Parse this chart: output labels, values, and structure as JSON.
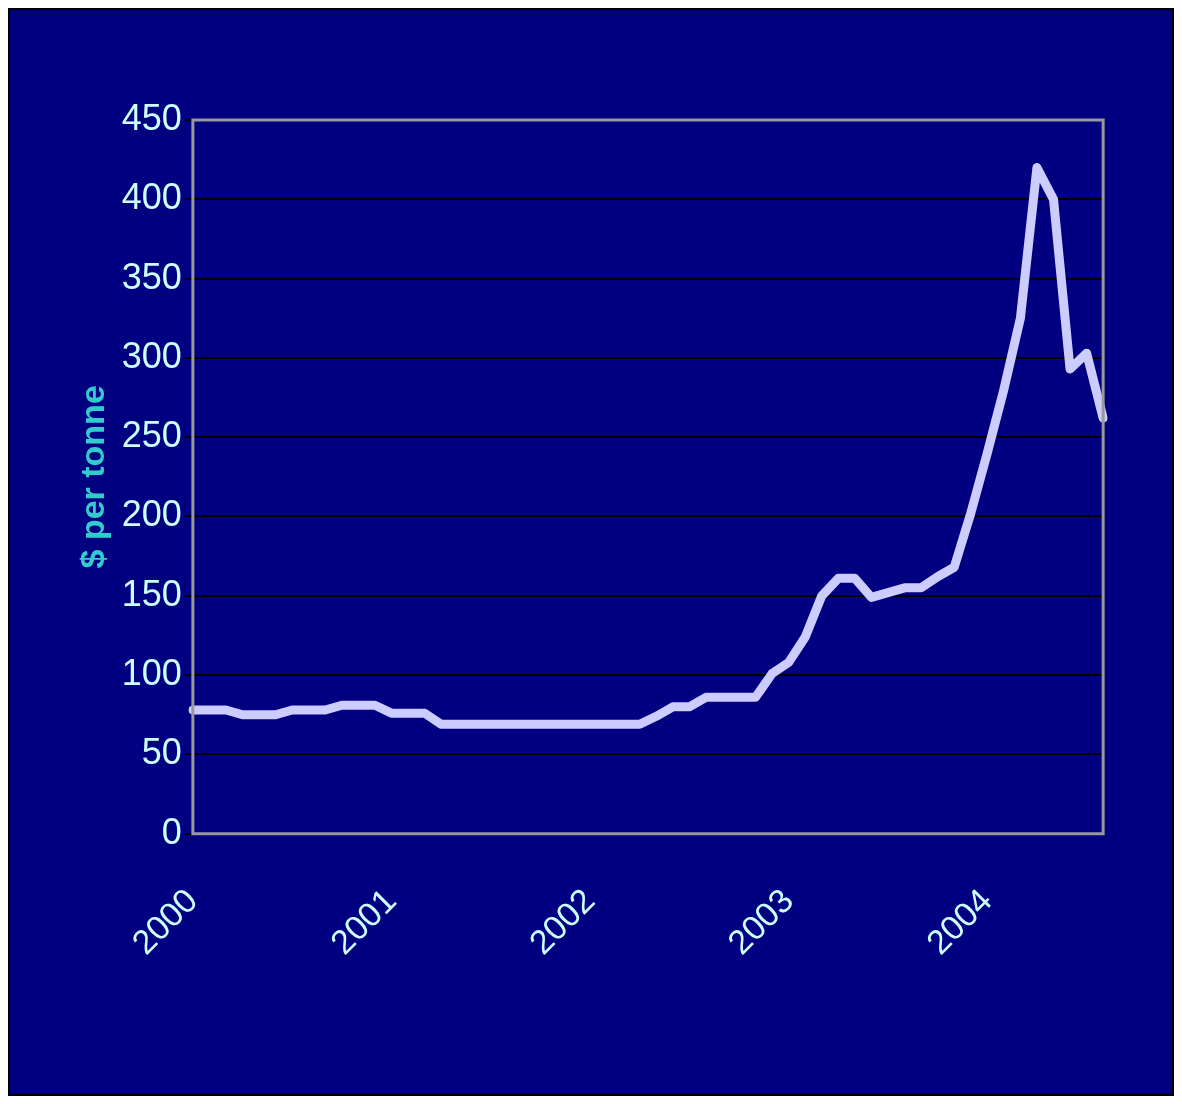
{
  "chart_data": {
    "type": "line",
    "ylabel": "$ per tonne",
    "categories": [
      "2000",
      null,
      null,
      null,
      null,
      null,
      null,
      null,
      null,
      null,
      null,
      null,
      "2001",
      null,
      null,
      null,
      null,
      null,
      null,
      null,
      null,
      null,
      null,
      null,
      "2002",
      null,
      null,
      null,
      null,
      null,
      null,
      null,
      null,
      null,
      null,
      null,
      "2003",
      null,
      null,
      null,
      null,
      null,
      null,
      null,
      null,
      null,
      null,
      null,
      "2004",
      null,
      null,
      null,
      null,
      null,
      null,
      null
    ],
    "series": [
      {
        "color": "#ccccff",
        "values": [
          78,
          78,
          78,
          75,
          75,
          75,
          78,
          78,
          78,
          81,
          81,
          81,
          76,
          76,
          76,
          69,
          69,
          69,
          69,
          69,
          69,
          69,
          69,
          69,
          69,
          69,
          69,
          69,
          74,
          80,
          80,
          86,
          86,
          86,
          86,
          101,
          108,
          124,
          150,
          161,
          161,
          149,
          152,
          155,
          155,
          162,
          168,
          202,
          240,
          280,
          325,
          420,
          400,
          293,
          303,
          262
        ]
      }
    ],
    "ylim": [
      0,
      450
    ],
    "yticks": [
      0,
      50,
      100,
      150,
      200,
      250,
      300,
      350,
      400,
      450
    ],
    "grid": "y",
    "legend": false,
    "marker": "none",
    "line_style": "solid"
  }
}
